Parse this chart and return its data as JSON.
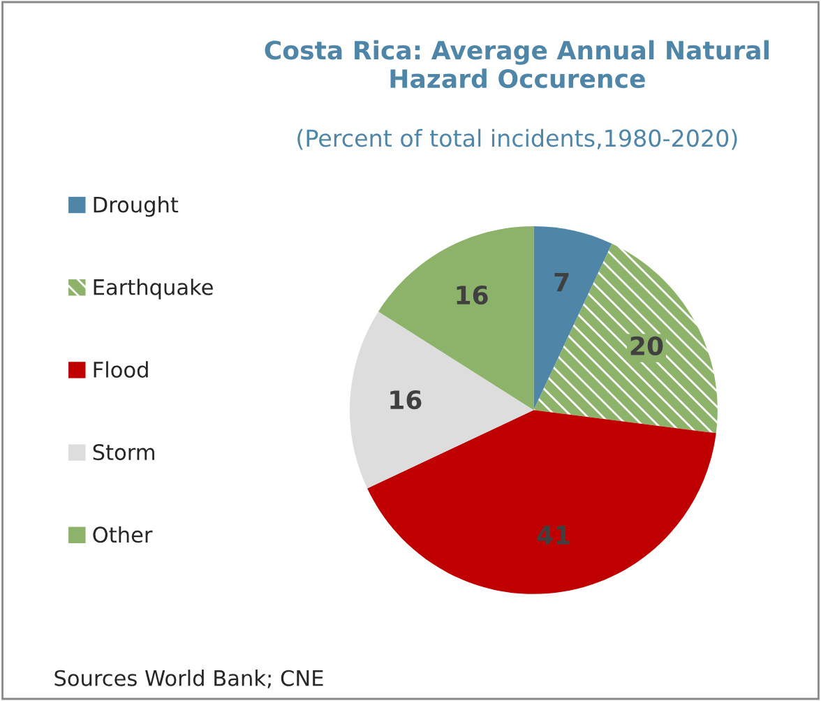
{
  "chart_data": {
    "type": "pie",
    "title": "Costa Rica: Average Annual Natural Hazard Occurence",
    "subtitle": "(Percent of total incidents,1980-2020)",
    "categories": [
      "Drought",
      "Earthquake",
      "Flood",
      "Storm",
      "Other"
    ],
    "values": [
      7,
      20,
      41,
      16,
      16
    ],
    "colors": [
      "#4f86a8",
      "#8db36a",
      "#c00000",
      "#dddddd",
      "#8db36a"
    ],
    "data_labels": true,
    "legend": "left",
    "annotations": [
      "Sources World Bank; CNE"
    ]
  }
}
